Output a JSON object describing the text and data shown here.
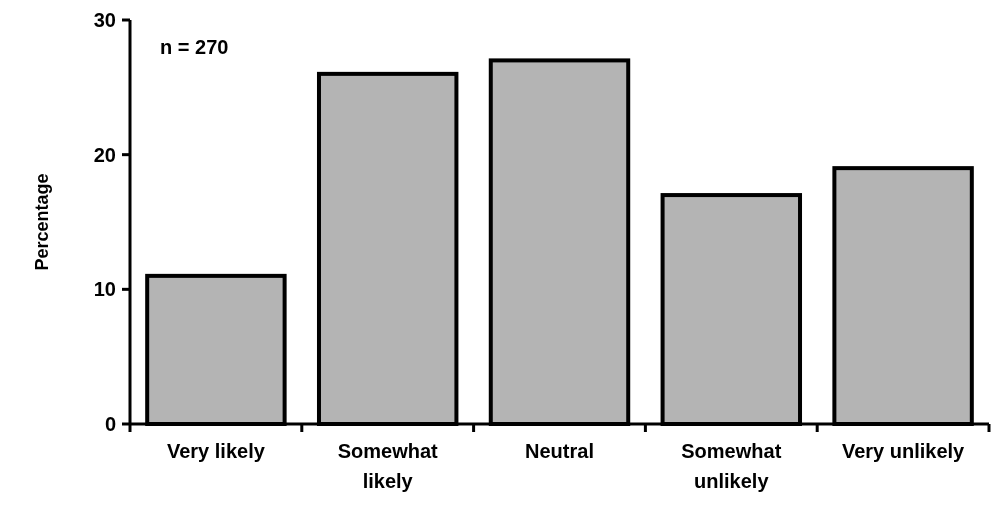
{
  "chart_data": {
    "type": "bar",
    "ylabel": "Percentage",
    "categories": [
      "Very likely",
      "Somewhat likely",
      "Neutral",
      "Somewhat unlikely",
      "Very unlikely"
    ],
    "values": [
      11,
      26,
      27,
      17,
      19
    ],
    "color": "#b4b4b4",
    "ylim": [
      0,
      30
    ],
    "yticks": [
      0,
      10,
      20,
      30
    ],
    "grid": false,
    "annotations": [
      "n = 270"
    ]
  }
}
